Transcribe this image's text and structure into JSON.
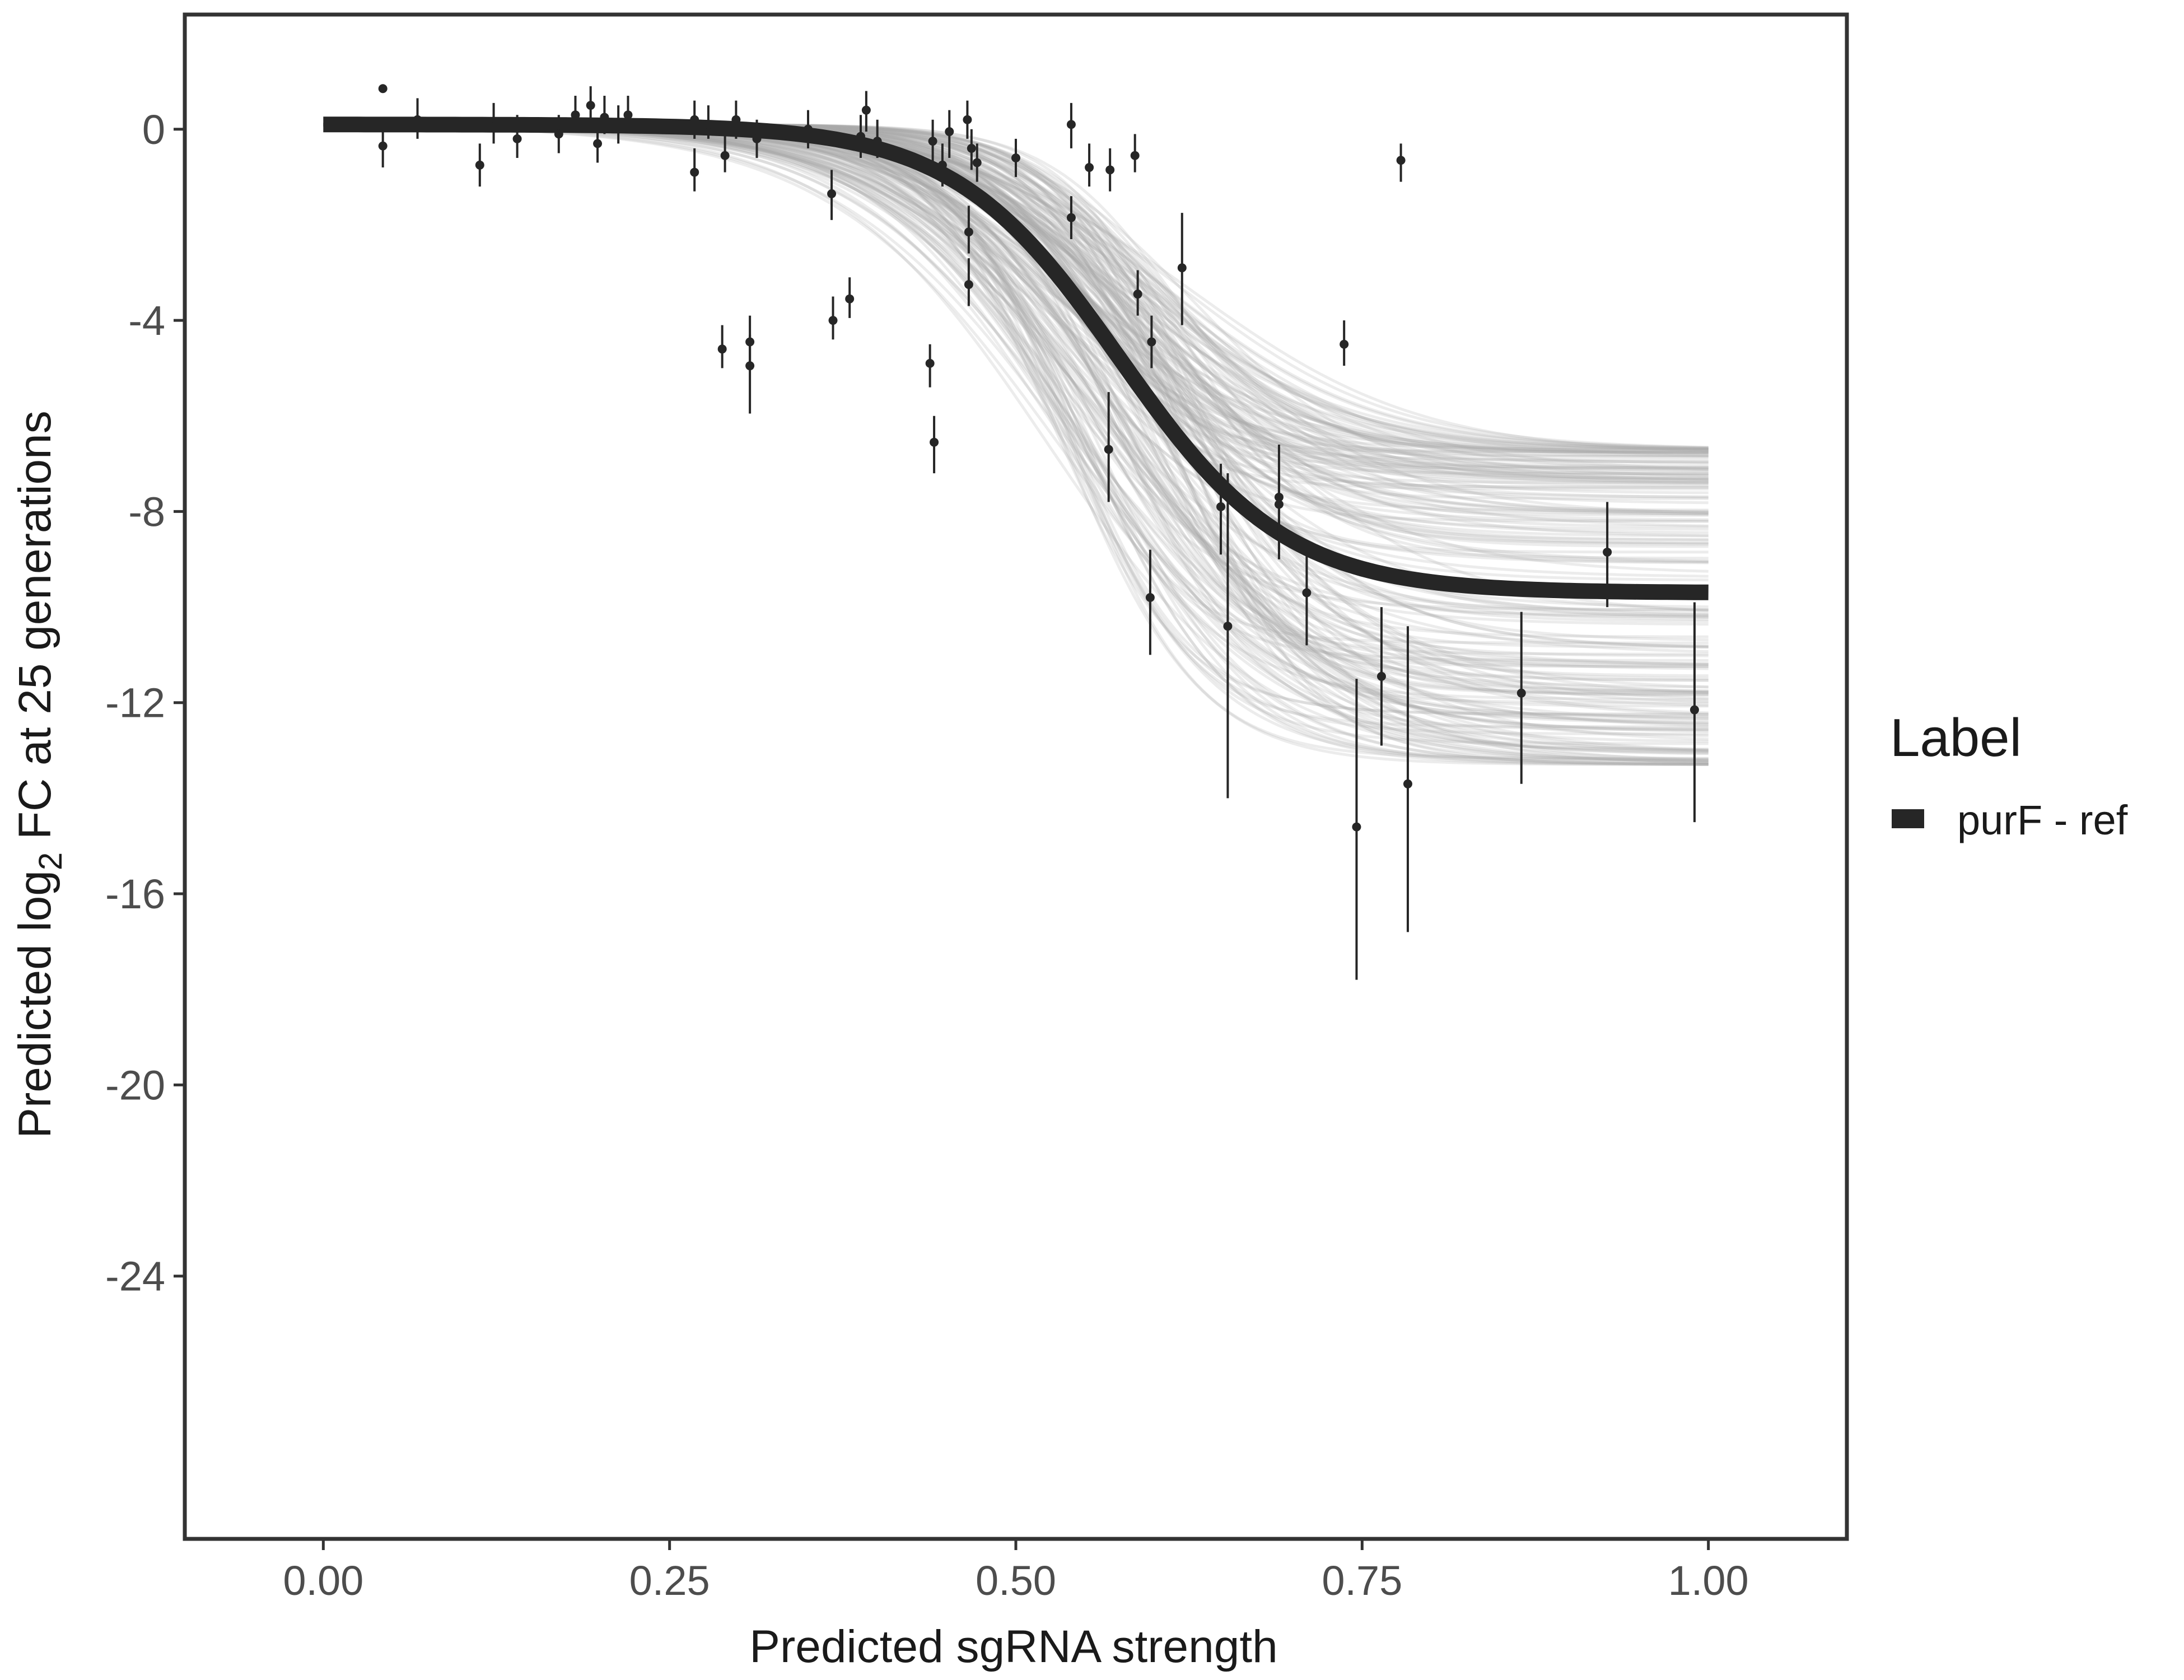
{
  "chart_data": {
    "type": "line",
    "title": "",
    "xlabel": "Predicted sgRNA strength",
    "ylabel": {
      "prefix": "Predicted  log",
      "subscript": "2",
      "suffix": " FC at 25 generations"
    },
    "xlim": [
      -0.1,
      1.1
    ],
    "ylim": [
      -29.5,
      2.4
    ],
    "x_ticks": [
      0.0,
      0.25,
      0.5,
      0.75,
      1.0
    ],
    "x_tick_labels": [
      "0.00",
      "0.25",
      "0.50",
      "0.75",
      "1.00"
    ],
    "y_ticks": [
      0,
      -4,
      -8,
      -12,
      -16,
      -20,
      -24
    ],
    "y_tick_labels": [
      "0",
      "-4",
      "-8",
      "-12",
      "-16",
      "-20",
      "-24"
    ],
    "grid": false,
    "legend": {
      "title": "Label",
      "entries": [
        "purF - ref"
      ],
      "position": "right"
    },
    "colors": {
      "fit_line": "#262626",
      "ribbon": "#a8a8a8",
      "points": "#262626",
      "axis": "#333333"
    },
    "fitted_curve": {
      "name": "purF - ref",
      "model": "logistic",
      "lower_asymptote": 0.1,
      "upper_asymptote": -9.7,
      "midpoint": 0.575,
      "scale": 0.06
    },
    "posterior_draws": {
      "count": 200,
      "asymptote_range": [
        -13.3,
        -6.7
      ],
      "midpoint_range": [
        0.52,
        0.63
      ],
      "scale_range": [
        0.04,
        0.085
      ]
    },
    "points": [
      {
        "x": 0.043,
        "y": 0.85,
        "lo": 0.85,
        "hi": 0.85
      },
      {
        "x": 0.043,
        "y": -0.35,
        "lo": -0.8,
        "hi": 0.1
      },
      {
        "x": 0.068,
        "y": 0.2,
        "lo": -0.2,
        "hi": 0.65
      },
      {
        "x": 0.113,
        "y": -0.75,
        "lo": -1.2,
        "hi": -0.3
      },
      {
        "x": 0.123,
        "y": 0.05,
        "lo": -0.3,
        "hi": 0.55
      },
      {
        "x": 0.14,
        "y": -0.2,
        "lo": -0.6,
        "hi": 0.3
      },
      {
        "x": 0.17,
        "y": -0.1,
        "lo": -0.5,
        "hi": 0.3
      },
      {
        "x": 0.182,
        "y": 0.3,
        "lo": 0.0,
        "hi": 0.7
      },
      {
        "x": 0.193,
        "y": 0.5,
        "lo": 0.1,
        "hi": 0.9
      },
      {
        "x": 0.198,
        "y": -0.3,
        "lo": -0.7,
        "hi": 0.1
      },
      {
        "x": 0.203,
        "y": 0.25,
        "lo": -0.1,
        "hi": 0.7
      },
      {
        "x": 0.213,
        "y": 0.1,
        "lo": -0.3,
        "hi": 0.5
      },
      {
        "x": 0.22,
        "y": 0.3,
        "lo": -0.05,
        "hi": 0.7
      },
      {
        "x": 0.268,
        "y": 0.2,
        "lo": -0.2,
        "hi": 0.6
      },
      {
        "x": 0.268,
        "y": -0.9,
        "lo": -1.3,
        "hi": -0.4
      },
      {
        "x": 0.278,
        "y": 0.1,
        "lo": -0.2,
        "hi": 0.5
      },
      {
        "x": 0.288,
        "y": -4.6,
        "lo": -5.0,
        "hi": -4.1
      },
      {
        "x": 0.29,
        "y": -0.55,
        "lo": -0.9,
        "hi": -0.1
      },
      {
        "x": 0.298,
        "y": 0.2,
        "lo": -0.2,
        "hi": 0.6
      },
      {
        "x": 0.308,
        "y": -4.45,
        "lo": -5.0,
        "hi": -3.9
      },
      {
        "x": 0.308,
        "y": -4.95,
        "lo": -5.95,
        "hi": -4.3
      },
      {
        "x": 0.313,
        "y": -0.2,
        "lo": -0.6,
        "hi": 0.2
      },
      {
        "x": 0.35,
        "y": 0.0,
        "lo": -0.4,
        "hi": 0.4
      },
      {
        "x": 0.367,
        "y": -1.35,
        "lo": -1.9,
        "hi": -0.85
      },
      {
        "x": 0.368,
        "y": -4.0,
        "lo": -4.4,
        "hi": -3.5
      },
      {
        "x": 0.38,
        "y": -3.55,
        "lo": -3.95,
        "hi": -3.1
      },
      {
        "x": 0.388,
        "y": -0.15,
        "lo": -0.6,
        "hi": 0.3
      },
      {
        "x": 0.392,
        "y": 0.4,
        "lo": -0.05,
        "hi": 0.8
      },
      {
        "x": 0.4,
        "y": -0.25,
        "lo": -0.6,
        "hi": 0.2
      },
      {
        "x": 0.438,
        "y": -4.9,
        "lo": -5.4,
        "hi": -4.5
      },
      {
        "x": 0.441,
        "y": -6.55,
        "lo": -7.2,
        "hi": -6.0
      },
      {
        "x": 0.44,
        "y": -0.25,
        "lo": -0.7,
        "hi": 0.2
      },
      {
        "x": 0.447,
        "y": -0.75,
        "lo": -1.2,
        "hi": -0.3
      },
      {
        "x": 0.452,
        "y": -0.05,
        "lo": -0.6,
        "hi": 0.4
      },
      {
        "x": 0.465,
        "y": 0.2,
        "lo": -0.2,
        "hi": 0.6
      },
      {
        "x": 0.466,
        "y": -2.15,
        "lo": -2.6,
        "hi": -1.6
      },
      {
        "x": 0.466,
        "y": -3.25,
        "lo": -3.7,
        "hi": -2.7
      },
      {
        "x": 0.468,
        "y": -0.4,
        "lo": -0.85,
        "hi": 0.0
      },
      {
        "x": 0.472,
        "y": -0.7,
        "lo": -1.1,
        "hi": -0.3
      },
      {
        "x": 0.5,
        "y": -0.6,
        "lo": -1.0,
        "hi": -0.2
      },
      {
        "x": 0.54,
        "y": 0.1,
        "lo": -0.4,
        "hi": 0.55
      },
      {
        "x": 0.54,
        "y": -1.85,
        "lo": -2.3,
        "hi": -1.4
      },
      {
        "x": 0.553,
        "y": -0.8,
        "lo": -1.2,
        "hi": -0.3
      },
      {
        "x": 0.568,
        "y": -0.85,
        "lo": -1.3,
        "hi": -0.4
      },
      {
        "x": 0.567,
        "y": -6.7,
        "lo": -7.8,
        "hi": -5.5
      },
      {
        "x": 0.586,
        "y": -0.55,
        "lo": -0.9,
        "hi": -0.1
      },
      {
        "x": 0.588,
        "y": -3.45,
        "lo": -3.9,
        "hi": -2.95
      },
      {
        "x": 0.597,
        "y": -9.8,
        "lo": -11.0,
        "hi": -8.8
      },
      {
        "x": 0.598,
        "y": -4.45,
        "lo": -5.0,
        "hi": -3.9
      },
      {
        "x": 0.62,
        "y": -2.9,
        "lo": -4.1,
        "hi": -1.75
      },
      {
        "x": 0.648,
        "y": -7.9,
        "lo": -8.9,
        "hi": -7.0
      },
      {
        "x": 0.653,
        "y": -10.4,
        "lo": -14.0,
        "hi": -7.2
      },
      {
        "x": 0.69,
        "y": -7.7,
        "lo": -8.8,
        "hi": -6.6
      },
      {
        "x": 0.69,
        "y": -7.85,
        "lo": -9.0,
        "hi": -7.3
      },
      {
        "x": 0.71,
        "y": -9.7,
        "lo": -10.8,
        "hi": -8.7
      },
      {
        "x": 0.737,
        "y": -4.5,
        "lo": -4.95,
        "hi": -4.0
      },
      {
        "x": 0.746,
        "y": -14.6,
        "lo": -17.8,
        "hi": -11.5
      },
      {
        "x": 0.764,
        "y": -11.45,
        "lo": -12.9,
        "hi": -10.0
      },
      {
        "x": 0.778,
        "y": -0.65,
        "lo": -1.1,
        "hi": -0.3
      },
      {
        "x": 0.783,
        "y": -13.7,
        "lo": -16.8,
        "hi": -10.4
      },
      {
        "x": 0.865,
        "y": -11.8,
        "lo": -13.7,
        "hi": -10.1
      },
      {
        "x": 0.927,
        "y": -8.85,
        "lo": -10.0,
        "hi": -7.8
      },
      {
        "x": 0.99,
        "y": -12.15,
        "lo": -14.5,
        "hi": -9.9
      }
    ]
  }
}
